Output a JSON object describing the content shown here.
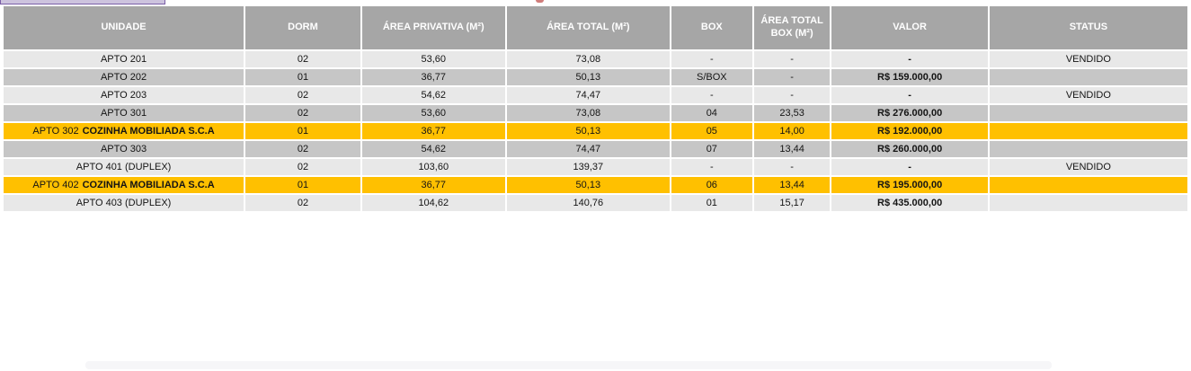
{
  "table": {
    "columns": [
      {
        "label": "UNIDADE"
      },
      {
        "label": "DORM"
      },
      {
        "label": "ÁREA PRIVATIVA (M²)"
      },
      {
        "label": "ÁREA TOTAL (M²)"
      },
      {
        "label": "BOX"
      },
      {
        "label": "ÁREA TOTAL BOX (M²)"
      },
      {
        "label": "VALOR"
      },
      {
        "label": "STATUS"
      }
    ],
    "rows": [
      {
        "unidade": "APTO 201",
        "note": "",
        "dorm": "02",
        "area_privativa": "53,60",
        "area_total": "73,08",
        "box": "-",
        "area_total_box": "-",
        "valor": "-",
        "status": "VENDIDO",
        "variant": "zebra-light"
      },
      {
        "unidade": "APTO 202",
        "note": "",
        "dorm": "01",
        "area_privativa": "36,77",
        "area_total": "50,13",
        "box": "S/BOX",
        "area_total_box": "-",
        "valor": "R$ 159.000,00",
        "status": "",
        "variant": "zebra-dark"
      },
      {
        "unidade": "APTO 203",
        "note": "",
        "dorm": "02",
        "area_privativa": "54,62",
        "area_total": "74,47",
        "box": "-",
        "area_total_box": "-",
        "valor": "-",
        "status": "VENDIDO",
        "variant": "zebra-light"
      },
      {
        "unidade": "APTO 301",
        "note": "",
        "dorm": "02",
        "area_privativa": "53,60",
        "area_total": "73,08",
        "box": "04",
        "area_total_box": "23,53",
        "valor": "R$ 276.000,00",
        "status": "",
        "variant": "zebra-dark"
      },
      {
        "unidade": "APTO 302",
        "note": "COZINHA MOBILIADA S.C.A",
        "dorm": "01",
        "area_privativa": "36,77",
        "area_total": "50,13",
        "box": "05",
        "area_total_box": "14,00",
        "valor": "R$ 192.000,00",
        "status": "",
        "variant": "gold"
      },
      {
        "unidade": "APTO 303",
        "note": "",
        "dorm": "02",
        "area_privativa": "54,62",
        "area_total": "74,47",
        "box": "07",
        "area_total_box": "13,44",
        "valor": "R$ 260.000,00",
        "status": "",
        "variant": "zebra-dark"
      },
      {
        "unidade": "APTO 401 (DUPLEX)",
        "note": "",
        "dorm": "02",
        "area_privativa": "103,60",
        "area_total": "139,37",
        "box": "-",
        "area_total_box": "-",
        "valor": "-",
        "status": "VENDIDO",
        "variant": "zebra-light"
      },
      {
        "unidade": "APTO 402",
        "note": "COZINHA MOBILIADA S.C.A",
        "dorm": "01",
        "area_privativa": "36,77",
        "area_total": "50,13",
        "box": "06",
        "area_total_box": "13,44",
        "valor": "R$ 195.000,00",
        "status": "",
        "variant": "gold"
      },
      {
        "unidade": "APTO 403 (DUPLEX)",
        "note": "",
        "dorm": "02",
        "area_privativa": "104,62",
        "area_total": "140,76",
        "box": "01",
        "area_total_box": "15,17",
        "valor": "R$ 435.000,00",
        "status": "",
        "variant": "zebra-light"
      }
    ]
  },
  "colors": {
    "header_bg": "#a6a6a6",
    "zebra_light": "#e8e8e8",
    "zebra_dark": "#c6c6c6",
    "highlight_gold": "#ffc000",
    "clipped_tab_border": "#7a5ea6",
    "clipped_tab_fill": "#cdc3de",
    "clipped_red_mark": "#c0504d"
  }
}
